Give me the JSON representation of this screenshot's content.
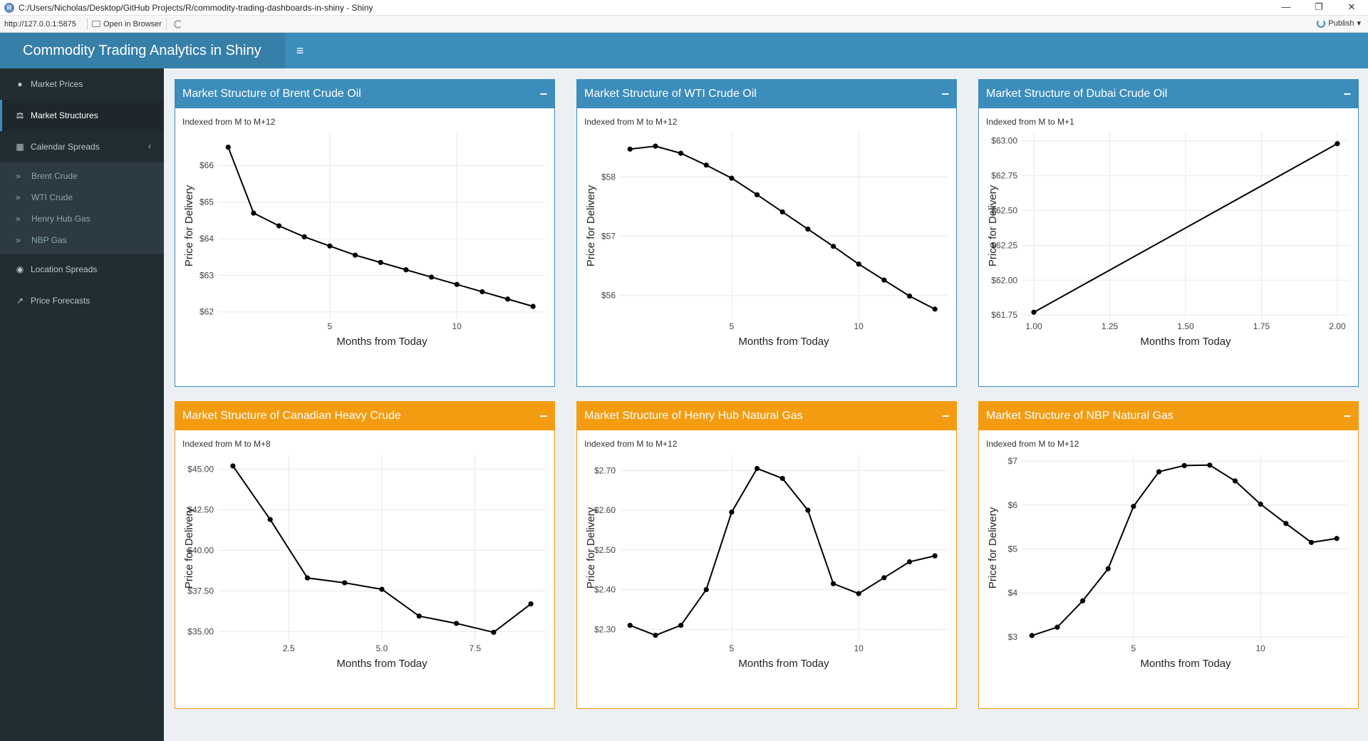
{
  "window": {
    "title": "C:/Users/Nicholas/Desktop/GitHub Projects/R/commodity-trading-dashboards-in-shiny - Shiny",
    "app_icon": "R",
    "controls": [
      "—",
      "❐",
      "✕"
    ]
  },
  "toolbar": {
    "url": "http://127.0.0.1:5875",
    "open_label": "Open in Browser",
    "publish_label": "Publish",
    "publish_caret": "▾"
  },
  "header": {
    "title": "Commodity Trading Analytics in Shiny",
    "toggle_icon": "≡"
  },
  "sidebar": {
    "items": [
      {
        "label": "Market Prices",
        "icon": "comment-icon",
        "glyph": "●"
      },
      {
        "label": "Market Structures",
        "icon": "balance-scale-icon",
        "glyph": "⚖"
      },
      {
        "label": "Calendar Spreads",
        "icon": "calendar-icon",
        "glyph": "▦"
      },
      {
        "label": "Location Spreads",
        "icon": "globe-icon",
        "glyph": "◉"
      },
      {
        "label": "Price Forecasts",
        "icon": "line-chart-icon",
        "glyph": "↗"
      }
    ],
    "caret": "‹",
    "sub_glyph": "»",
    "subitems": [
      "Brent Crude",
      "WTI Crude",
      "Henry Hub Gas",
      "NBP Gas"
    ]
  },
  "colors": {
    "primary": "#3c8dbc",
    "warning": "#f39c12",
    "sidebar": "#222d32"
  },
  "boxes": [
    {
      "title": "Market Structure of Brent Crude Oil",
      "subtitle": "Indexed from M to M+12",
      "status": "primary",
      "collapse": "−"
    },
    {
      "title": "Market Structure of WTI Crude Oil",
      "subtitle": "Indexed from M to M+12",
      "status": "primary",
      "collapse": "−"
    },
    {
      "title": "Market Structure of Dubai Crude Oil",
      "subtitle": "Indexed from M to M+1",
      "status": "primary",
      "collapse": "−"
    },
    {
      "title": "Market Structure of Canadian Heavy Crude",
      "subtitle": "Indexed from M to M+8",
      "status": "warning",
      "collapse": "−"
    },
    {
      "title": "Market Structure of Henry Hub Natural Gas",
      "subtitle": "Indexed from M to M+12",
      "status": "warning",
      "collapse": "−"
    },
    {
      "title": "Market Structure of NBP Natural Gas",
      "subtitle": "Indexed from M to M+12",
      "status": "warning",
      "collapse": "−"
    }
  ],
  "chart_data": [
    {
      "type": "line",
      "xlabel": "Months from Today",
      "ylabel": "Price for Delivery",
      "xlim": [
        0.6,
        13.5
      ],
      "ylim": [
        61.8,
        66.9
      ],
      "xticks": [
        5,
        10
      ],
      "xtick_labels": [
        "5",
        "10"
      ],
      "yticks": [
        62,
        63,
        64,
        65,
        66
      ],
      "ytick_labels": [
        "$62",
        "$63",
        "$64",
        "$65",
        "$66"
      ],
      "x": [
        1,
        2,
        3,
        4,
        5,
        6,
        7,
        8,
        9,
        10,
        11,
        12,
        13
      ],
      "y": [
        66.5,
        64.7,
        64.35,
        64.05,
        63.8,
        63.55,
        63.35,
        63.15,
        62.95,
        62.75,
        62.55,
        62.35,
        62.15
      ]
    },
    {
      "type": "line",
      "xlabel": "Months from Today",
      "ylabel": "Price for Delivery",
      "xlim": [
        0.6,
        13.5
      ],
      "ylim": [
        55.6,
        58.75
      ],
      "xticks": [
        5,
        10
      ],
      "xtick_labels": [
        "5",
        "10"
      ],
      "yticks": [
        56,
        57,
        58
      ],
      "ytick_labels": [
        "$56",
        "$57",
        "$58"
      ],
      "x": [
        1,
        2,
        3,
        4,
        5,
        6,
        7,
        8,
        9,
        10,
        11,
        12,
        13
      ],
      "y": [
        58.47,
        58.52,
        58.4,
        58.2,
        57.98,
        57.7,
        57.41,
        57.12,
        56.83,
        56.53,
        56.26,
        55.99,
        55.77
      ]
    },
    {
      "type": "line",
      "xlabel": "Months from Today",
      "ylabel": "Price for Delivery",
      "xlim": [
        0.96,
        2.04
      ],
      "ylim": [
        61.72,
        63.06
      ],
      "xticks": [
        1.0,
        1.25,
        1.5,
        1.75,
        2.0
      ],
      "xtick_labels": [
        "1.00",
        "1.25",
        "1.50",
        "1.75",
        "2.00"
      ],
      "yticks": [
        61.75,
        62.0,
        62.25,
        62.5,
        62.75,
        63.0
      ],
      "ytick_labels": [
        "$61.75",
        "$62.00",
        "$62.25",
        "$62.50",
        "$62.75",
        "$63.00"
      ],
      "x": [
        1,
        2
      ],
      "y": [
        61.77,
        62.98
      ]
    },
    {
      "type": "line",
      "xlabel": "Months from Today",
      "ylabel": "Price for Delivery",
      "xlim": [
        0.6,
        9.4
      ],
      "ylim": [
        34.4,
        45.9
      ],
      "xticks": [
        2.5,
        5.0,
        7.5
      ],
      "xtick_labels": [
        "2.5",
        "5.0",
        "7.5"
      ],
      "yticks": [
        35,
        37.5,
        40,
        42.5,
        45
      ],
      "ytick_labels": [
        "$35.00",
        "$37.50",
        "$40.00",
        "$42.50",
        "$45.00"
      ],
      "x": [
        1,
        2,
        3,
        4,
        5,
        6,
        7,
        8,
        9
      ],
      "y": [
        45.2,
        41.9,
        38.3,
        38.0,
        37.6,
        35.95,
        35.5,
        34.95,
        36.7
      ]
    },
    {
      "type": "line",
      "xlabel": "Months from Today",
      "ylabel": "Price for Delivery",
      "xlim": [
        0.6,
        13.5
      ],
      "ylim": [
        2.27,
        2.74
      ],
      "xticks": [
        5,
        10
      ],
      "xtick_labels": [
        "5",
        "10"
      ],
      "yticks": [
        2.3,
        2.4,
        2.5,
        2.6,
        2.7
      ],
      "ytick_labels": [
        "$2.30",
        "$2.40",
        "$2.50",
        "$2.60",
        "$2.70"
      ],
      "x": [
        1,
        2,
        3,
        4,
        5,
        6,
        7,
        8,
        9,
        10,
        11,
        12,
        13
      ],
      "y": [
        2.31,
        2.285,
        2.31,
        2.4,
        2.595,
        2.705,
        2.68,
        2.6,
        2.415,
        2.39,
        2.43,
        2.47,
        2.485
      ]
    },
    {
      "type": "line",
      "xlabel": "Months from Today",
      "ylabel": "Price for Delivery",
      "xlim": [
        0.6,
        13.5
      ],
      "ylim": [
        2.9,
        7.15
      ],
      "xticks": [
        5,
        10
      ],
      "xtick_labels": [
        "5",
        "10"
      ],
      "yticks": [
        3,
        4,
        5,
        6,
        7
      ],
      "ytick_labels": [
        "$3",
        "$4",
        "$5",
        "$6",
        "$7"
      ],
      "x": [
        1,
        2,
        3,
        4,
        5,
        6,
        7,
        8,
        9,
        10,
        11,
        12,
        13
      ],
      "y": [
        3.03,
        3.22,
        3.82,
        4.55,
        5.97,
        6.76,
        6.9,
        6.91,
        6.55,
        6.02,
        5.58,
        5.15,
        5.24
      ]
    }
  ]
}
